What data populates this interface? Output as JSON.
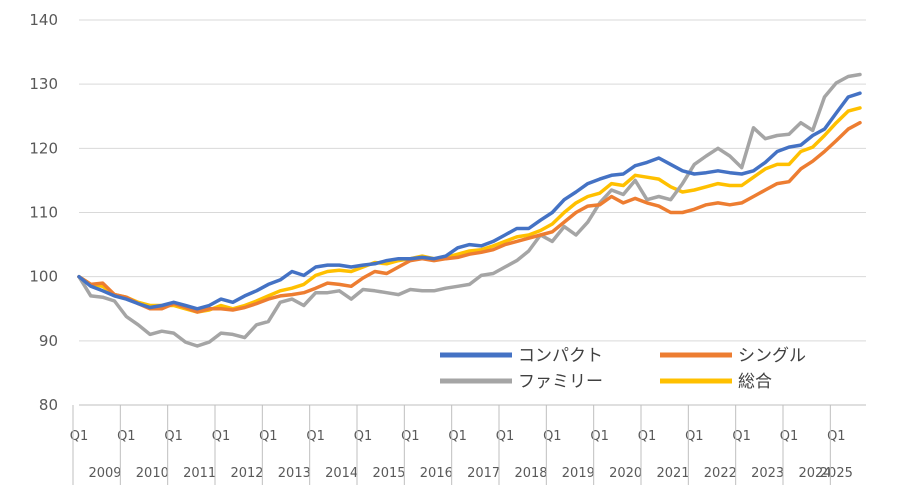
{
  "chart_data": {
    "type": "line",
    "title": "",
    "xlabel": "",
    "ylabel": "",
    "ylim": [
      80,
      140
    ],
    "yticks": [
      80,
      90,
      100,
      110,
      120,
      130,
      140
    ],
    "grid": "horizontal",
    "legend_position": "bottom-right",
    "quarter_label": "Q1",
    "year_labels": [
      "2009",
      "2010",
      "2011",
      "2012",
      "2013",
      "2014",
      "2015",
      "2016",
      "2017",
      "2018",
      "2019",
      "2020",
      "2021",
      "2022",
      "2023",
      "2024",
      "2025"
    ],
    "series": [
      {
        "name": "コンパクト",
        "color": "#4472C4",
        "values": [
          100,
          98.5,
          97.8,
          97.0,
          96.5,
          95.8,
          95.2,
          95.5,
          96.0,
          95.5,
          95.0,
          95.5,
          96.5,
          96.0,
          97.0,
          97.8,
          98.8,
          99.5,
          100.8,
          100.2,
          101.5,
          101.8,
          101.8,
          101.5,
          101.8,
          102.0,
          102.5,
          102.8,
          102.8,
          103.0,
          102.8,
          103.2,
          104.5,
          105.0,
          104.8,
          105.5,
          106.5,
          107.5,
          107.5,
          108.8,
          110.0,
          112.0,
          113.2,
          114.5,
          115.2,
          115.8,
          116.0,
          117.3,
          117.8,
          118.5,
          117.5,
          116.5,
          116.0,
          116.2,
          116.5,
          116.2,
          116.0,
          116.5,
          117.8,
          119.5,
          120.2,
          120.5,
          122.0,
          123.0,
          125.5,
          128.0,
          128.6
        ]
      },
      {
        "name": "シングル",
        "color": "#ED7D31",
        "values": [
          100,
          98.8,
          99.0,
          97.2,
          96.8,
          95.8,
          95.0,
          95.0,
          95.8,
          95.2,
          94.5,
          95.0,
          95.0,
          94.8,
          95.2,
          95.8,
          96.5,
          97.0,
          97.2,
          97.5,
          98.2,
          99.0,
          98.8,
          98.5,
          99.8,
          100.8,
          100.5,
          101.5,
          102.5,
          102.8,
          102.5,
          102.8,
          103.0,
          103.5,
          103.8,
          104.2,
          105.0,
          105.5,
          106.0,
          106.5,
          107.0,
          108.5,
          110.0,
          111.0,
          111.2,
          112.5,
          111.5,
          112.2,
          111.5,
          111.0,
          110.0,
          110.0,
          110.5,
          111.2,
          111.5,
          111.2,
          111.5,
          112.5,
          113.5,
          114.5,
          114.8,
          116.8,
          118.0,
          119.5,
          121.2,
          123.0,
          124.0
        ]
      },
      {
        "name": "ファミリー",
        "color": "#A5A5A5",
        "values": [
          100,
          97.0,
          96.8,
          96.2,
          93.8,
          92.5,
          91.0,
          91.5,
          91.2,
          89.8,
          89.2,
          89.8,
          91.2,
          91.0,
          90.5,
          92.5,
          93.0,
          96.0,
          96.5,
          95.5,
          97.5,
          97.5,
          97.8,
          96.5,
          98.0,
          97.8,
          97.5,
          97.2,
          98.0,
          97.8,
          97.8,
          98.2,
          98.5,
          98.8,
          100.2,
          100.5,
          101.5,
          102.5,
          104.0,
          106.5,
          105.5,
          107.8,
          106.5,
          108.5,
          111.5,
          113.5,
          112.8,
          115.0,
          112.0,
          112.5,
          112.0,
          114.5,
          117.5,
          118.8,
          120.0,
          118.8,
          117.0,
          123.2,
          121.5,
          122.0,
          122.2,
          124.0,
          122.8,
          128.0,
          130.2,
          131.2,
          131.5
        ]
      },
      {
        "name": "総合",
        "color": "#FFC000",
        "values": [
          100,
          98.8,
          98.5,
          97.2,
          96.8,
          96.0,
          95.5,
          95.5,
          95.5,
          95.0,
          94.5,
          94.8,
          95.5,
          95.0,
          95.5,
          96.2,
          97.0,
          97.8,
          98.2,
          98.8,
          100.2,
          100.8,
          101.0,
          100.8,
          101.5,
          102.2,
          102.0,
          102.5,
          102.8,
          103.2,
          102.8,
          103.0,
          103.5,
          104.0,
          104.2,
          104.8,
          105.5,
          106.2,
          106.5,
          107.2,
          108.2,
          110.0,
          111.5,
          112.5,
          113.0,
          114.5,
          114.2,
          115.8,
          115.5,
          115.2,
          114.0,
          113.2,
          113.5,
          114.0,
          114.5,
          114.2,
          114.2,
          115.5,
          116.8,
          117.5,
          117.5,
          119.5,
          120.2,
          122.0,
          124.0,
          125.8,
          126.3
        ]
      }
    ]
  }
}
